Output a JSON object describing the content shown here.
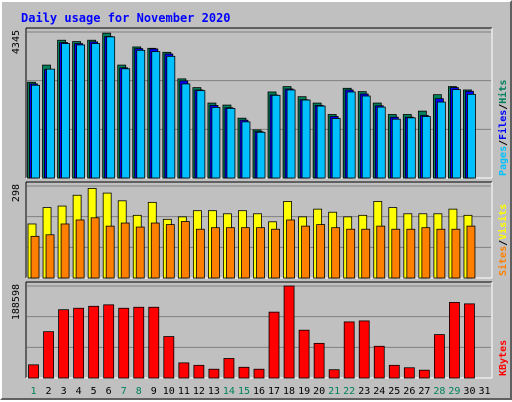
{
  "chart_data": {
    "type": "bar",
    "title": "Daily usage for November 2020",
    "categories": [
      "1",
      "2",
      "3",
      "4",
      "5",
      "6",
      "7",
      "8",
      "9",
      "10",
      "11",
      "12",
      "13",
      "14",
      "15",
      "16",
      "17",
      "18",
      "19",
      "20",
      "21",
      "22",
      "23",
      "24",
      "25",
      "26",
      "27",
      "28",
      "29",
      "30",
      "31"
    ],
    "weekend_days": [
      "1",
      "7",
      "8",
      "14",
      "15",
      "21",
      "22",
      "28",
      "29"
    ],
    "panels": [
      {
        "id": "hits_files_pages",
        "ylabel": [
          "Pages",
          "/",
          "Files",
          "/",
          "Hits"
        ],
        "ymax_label": "4345",
        "ylim": [
          0,
          4345
        ],
        "series": [
          {
            "name": "Hits",
            "color": "#00805c",
            "values": [
              2850,
              3360,
              4100,
              4060,
              4100,
              4310,
              3360,
              3900,
              3860,
              3740,
              2950,
              2690,
              2230,
              2170,
              1780,
              1430,
              2560,
              2720,
              2420,
              2230,
              1890,
              2670,
              2570,
              2230,
              1890,
              1890,
              1990,
              2480,
              2720,
              2620,
              null
            ]
          },
          {
            "name": "Files",
            "color": "#0000ff",
            "values": [
              2800,
              3230,
              4030,
              4000,
              4050,
              4210,
              3280,
              3850,
              3840,
              3690,
              2890,
              2620,
              2160,
              2090,
              1720,
              1380,
              2470,
              2650,
              2330,
              2160,
              1830,
              2620,
              2500,
              2150,
              1810,
              1810,
              1860,
              2360,
              2690,
              2580,
              null
            ]
          },
          {
            "name": "Pages",
            "color": "#00c0ff",
            "values": [
              2760,
              3240,
              4000,
              3960,
              4000,
              4200,
              3250,
              3800,
              3760,
              3620,
              2800,
              2600,
              2100,
              2070,
              1670,
              1360,
              2460,
              2620,
              2320,
              2140,
              1770,
              2560,
              2440,
              2110,
              1750,
              1790,
              1830,
              2260,
              2630,
              2490,
              null
            ]
          }
        ]
      },
      {
        "id": "visits_sites",
        "ylabel": [
          "Sites",
          "/",
          "Visits"
        ],
        "ymax_label": "298",
        "ylim": [
          0,
          298
        ],
        "series": [
          {
            "name": "Visits",
            "color": "#ffff00",
            "values": [
              175,
              228,
              233,
              268,
              290,
              275,
              250,
              203,
              245,
              190,
              198,
              218,
              218,
              208,
              218,
              208,
              182,
              248,
              198,
              223,
              213,
              198,
              203,
              248,
              228,
              208,
              208,
              208,
              223,
              203,
              null
            ]
          },
          {
            "name": "Sites",
            "color": "#ff8000",
            "values": [
              135,
              140,
              175,
              188,
              195,
              168,
              178,
              165,
              178,
              173,
              183,
              158,
              163,
              163,
              163,
              163,
              158,
              188,
              168,
              173,
              163,
              158,
              158,
              168,
              158,
              158,
              163,
              158,
              158,
              168,
              null
            ]
          }
        ]
      },
      {
        "id": "kbytes",
        "ylabel": [
          "KBytes"
        ],
        "ymax_label": "188598",
        "ylim": [
          0,
          188598
        ],
        "series": [
          {
            "name": "KBytes",
            "color": "#ff0000",
            "values": [
              27000,
              95000,
              140000,
              143000,
              147000,
              150000,
              143000,
              145000,
              145000,
              85000,
              31000,
              26000,
              18000,
              40000,
              22000,
              18000,
              135000,
              188598,
              98000,
              71000,
              17000,
              115000,
              117000,
              65000,
              26000,
              21000,
              16000,
              89000,
              155000,
              152000,
              null
            ]
          }
        ]
      }
    ],
    "colors": {
      "background": "#c0c0c0",
      "plot_background": "#c0c0c0",
      "grid": "#808080",
      "title": "#0000ff",
      "weekend_label": "#00805c",
      "weekday_label": "#000000"
    }
  }
}
